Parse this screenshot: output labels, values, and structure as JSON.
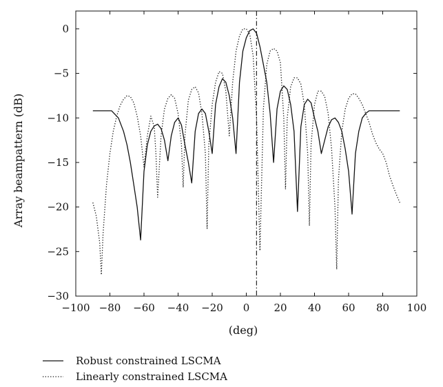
{
  "chart_data": {
    "type": "line",
    "title": "",
    "xlabel": "(deg)",
    "ylabel": "Array beampattern (dB)",
    "xlim": [
      -100,
      100
    ],
    "ylim": [
      -30,
      2
    ],
    "xticks": [
      -100,
      -80,
      -60,
      -40,
      -20,
      0,
      20,
      40,
      60,
      80,
      100
    ],
    "yticks": [
      0,
      -5,
      -10,
      -15,
      -20,
      -25,
      -30
    ],
    "xtick_labels": [
      "−100",
      "−80",
      "−60",
      "−40",
      "−20",
      "0",
      "20",
      "40",
      "60",
      "80",
      "100"
    ],
    "ytick_labels": [
      "0",
      "−5",
      "−10",
      "−15",
      "−20",
      "−25",
      "−30"
    ],
    "grid": false,
    "legend_position": "bottom-left (below plot)",
    "vertical_marker": {
      "x": 6,
      "style": "dash-dot"
    },
    "series": [
      {
        "name": "Robust constrained LSCMA",
        "style": "solid",
        "x": [
          -90,
          -79,
          -75,
          -72,
          -70,
          -68,
          -66,
          -64,
          -62,
          -60,
          -58,
          -56,
          -54,
          -52,
          -50,
          -48,
          -46,
          -44,
          -42,
          -40,
          -38,
          -36,
          -34,
          -32,
          -30,
          -28,
          -26,
          -24,
          -22,
          -20,
          -18,
          -16,
          -14,
          -12,
          -10,
          -8,
          -6,
          -4,
          -2,
          0,
          2,
          4,
          6,
          8,
          10,
          12,
          14,
          16,
          18,
          20,
          22,
          24,
          26,
          28,
          30,
          32,
          34,
          36,
          38,
          40,
          42,
          44,
          46,
          48,
          50,
          52,
          54,
          56,
          58,
          60,
          62,
          64,
          66,
          68,
          70,
          72,
          74,
          77,
          80,
          84,
          90
        ],
        "values": [
          -9.2,
          -9.2,
          -10.0,
          -11.5,
          -13.0,
          -15.0,
          -17.5,
          -20.0,
          -23.7,
          -16.0,
          -13.0,
          -11.5,
          -10.9,
          -10.7,
          -11.2,
          -12.5,
          -14.8,
          -12.0,
          -10.5,
          -10.0,
          -10.8,
          -13.0,
          -15.0,
          -17.3,
          -11.5,
          -9.5,
          -9.0,
          -9.5,
          -11.5,
          -14.0,
          -8.5,
          -6.5,
          -5.6,
          -6.0,
          -7.5,
          -10.0,
          -14.0,
          -6.0,
          -2.5,
          -1.0,
          -0.2,
          0.0,
          -0.5,
          -2.0,
          -4.0,
          -6.0,
          -9.5,
          -15.0,
          -9.0,
          -7.0,
          -6.4,
          -6.8,
          -8.5,
          -11.5,
          -20.5,
          -11.0,
          -8.5,
          -7.9,
          -8.3,
          -10.0,
          -11.5,
          -14.0,
          -12.5,
          -11.0,
          -10.2,
          -10.0,
          -10.5,
          -11.5,
          -13.5,
          -16.0,
          -20.8,
          -14.0,
          -11.5,
          -10.0,
          -9.5,
          -9.2,
          -9.2,
          -9.2,
          -9.2,
          -9.2,
          -9.2
        ]
      },
      {
        "name": "Linearly constrained LSCMA",
        "style": "dotted",
        "x": [
          -90,
          -88,
          -86,
          -85,
          -84,
          -82,
          -80,
          -78,
          -76,
          -74,
          -72,
          -70,
          -68,
          -66,
          -64,
          -62,
          -60,
          -58,
          -56,
          -54,
          -53,
          -52,
          -50,
          -48,
          -46,
          -44,
          -42,
          -40,
          -38,
          -37,
          -36,
          -34,
          -32,
          -30,
          -28,
          -26,
          -24,
          -23,
          -22,
          -20,
          -18,
          -16,
          -14,
          -12,
          -10,
          -8,
          -6,
          -4,
          -2,
          0,
          2,
          4,
          6,
          8,
          10,
          12,
          14,
          16,
          18,
          20,
          22,
          23,
          24,
          26,
          28,
          30,
          32,
          34,
          36,
          37,
          38,
          40,
          42,
          44,
          46,
          48,
          50,
          52,
          53,
          54,
          56,
          58,
          60,
          62,
          64,
          66,
          68,
          70,
          72,
          74,
          76,
          78,
          80,
          82,
          84,
          86,
          88,
          90
        ],
        "values": [
          -19.5,
          -21.0,
          -24.0,
          -27.6,
          -23.0,
          -17.5,
          -14.0,
          -11.5,
          -9.8,
          -8.6,
          -7.9,
          -7.5,
          -7.6,
          -8.3,
          -9.8,
          -12.0,
          -15.5,
          -12.0,
          -9.8,
          -11.0,
          -14.0,
          -18.9,
          -12.0,
          -9.0,
          -7.8,
          -7.4,
          -7.8,
          -9.5,
          -13.0,
          -17.8,
          -12.0,
          -8.0,
          -6.8,
          -6.5,
          -7.2,
          -9.5,
          -14.0,
          -22.4,
          -13.0,
          -8.5,
          -6.0,
          -4.8,
          -5.0,
          -7.0,
          -12.0,
          -6.0,
          -2.5,
          -0.8,
          0.0,
          0.0,
          -0.6,
          -3.0,
          -10.0,
          -24.9,
          -9.0,
          -4.0,
          -2.5,
          -2.2,
          -2.5,
          -3.8,
          -10.0,
          -18.0,
          -10.0,
          -6.5,
          -5.5,
          -5.5,
          -6.2,
          -8.5,
          -14.0,
          -22.1,
          -13.0,
          -8.5,
          -7.0,
          -7.0,
          -7.6,
          -9.5,
          -13.5,
          -20.0,
          -27.0,
          -17.0,
          -11.5,
          -9.0,
          -7.8,
          -7.3,
          -7.3,
          -7.8,
          -8.5,
          -9.5,
          -10.5,
          -11.8,
          -12.8,
          -13.5,
          -14.0,
          -15.0,
          -16.5,
          -17.6,
          -18.6,
          -19.5
        ]
      }
    ]
  },
  "legend": {
    "entries": [
      "Robust constrained LSCMA",
      "Linearly constrained LSCMA"
    ]
  }
}
